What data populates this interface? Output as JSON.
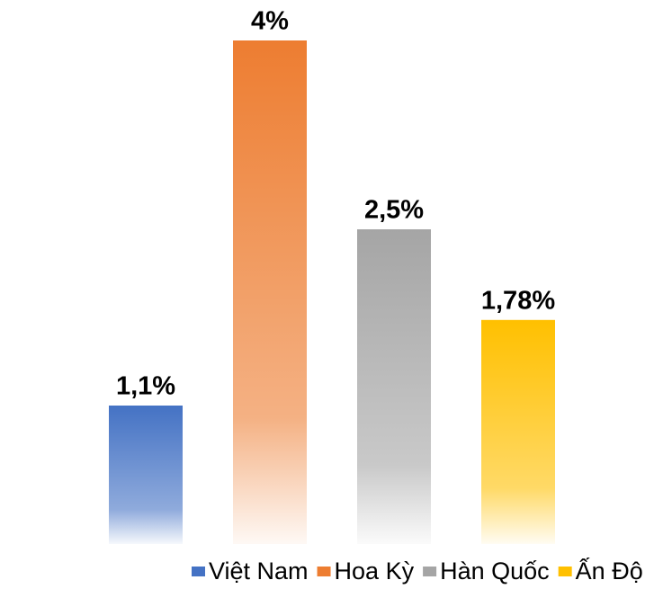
{
  "chart_data": {
    "type": "bar",
    "series": [
      {
        "name": "Việt Nam",
        "color": "#4472c4",
        "values": [
          1.1
        ],
        "value_labels": [
          "1,1%"
        ]
      },
      {
        "name": "Hoa Kỳ",
        "color": "#ed7d31",
        "values": [
          4
        ],
        "value_labels": [
          "4%"
        ]
      },
      {
        "name": "Hàn Quốc",
        "color": "#a5a5a5",
        "values": [
          2.5
        ],
        "value_labels": [
          "2,5%"
        ]
      },
      {
        "name": "Ấn Độ",
        "color": "#ffc000",
        "values": [
          1.78
        ],
        "value_labels": [
          "1,78%"
        ]
      }
    ]
  }
}
